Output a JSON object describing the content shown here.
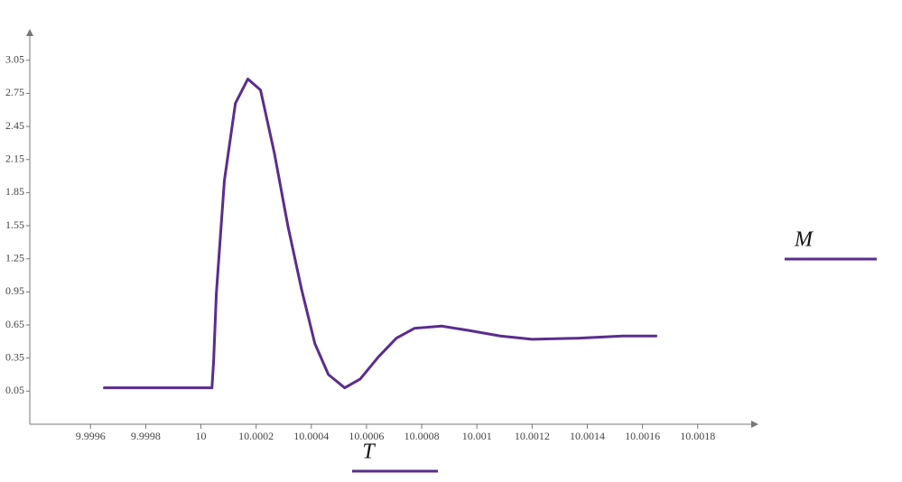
{
  "chart_data": {
    "type": "line",
    "x_label": "T",
    "x": [
      9.99965,
      10.00004,
      10.000046,
      10.000056,
      10.000085,
      10.000125,
      10.00017,
      10.000216,
      10.000266,
      10.000315,
      10.000364,
      10.000413,
      10.000462,
      10.000521,
      10.000577,
      10.000643,
      10.000708,
      10.000774,
      10.000872,
      10.000971,
      10.001085,
      10.0012,
      10.001364,
      10.001528,
      10.001649
    ],
    "series": [
      {
        "name": "M",
        "color": "#5b2d8e",
        "values": [
          0.08,
          0.08,
          0.32,
          0.94,
          1.96,
          2.66,
          2.88,
          2.78,
          2.21,
          1.55,
          0.98,
          0.48,
          0.2,
          0.08,
          0.16,
          0.36,
          0.53,
          0.62,
          0.64,
          0.6,
          0.55,
          0.52,
          0.53,
          0.55,
          0.55
        ]
      }
    ],
    "xlim": [
      9.99938,
      10.00202
    ],
    "xticks": [
      9.9996,
      9.9998,
      10,
      10.0002,
      10.0004,
      10.0006,
      10.0008,
      10.001,
      10.0012,
      10.0014,
      10.0016,
      10.0018
    ],
    "ylim": [
      -0.25,
      3.31
    ],
    "yticks": [
      0.05,
      0.35,
      0.65,
      0.95,
      1.25,
      1.55,
      1.85,
      2.15,
      2.45,
      2.75,
      3.05
    ],
    "grid": false
  }
}
